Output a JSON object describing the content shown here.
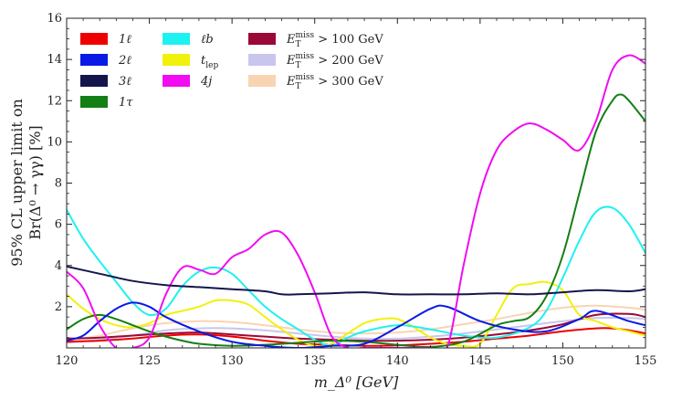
{
  "chart_data": {
    "type": "line",
    "title": "",
    "xlabel": "m_Δ⁰ [GeV]",
    "ylabel_line1": "95% CL upper limit on",
    "ylabel_line2": "Br(Δ⁰ → γγ) [%]",
    "xlim": [
      120,
      155
    ],
    "ylim": [
      0,
      16
    ],
    "xticks": [
      120,
      125,
      130,
      135,
      140,
      145,
      150,
      155
    ],
    "yticks": [
      2,
      4,
      6,
      8,
      10,
      12,
      14,
      16
    ],
    "legend_position": "top-left",
    "series": [
      {
        "name": "1ℓ",
        "color": "#ee0000",
        "x": [
          120,
          122,
          124,
          126,
          128,
          130,
          132,
          134,
          136,
          138,
          140,
          142,
          144,
          146,
          148,
          150,
          152,
          153,
          154,
          155
        ],
        "y": [
          0.3,
          0.35,
          0.45,
          0.6,
          0.65,
          0.55,
          0.35,
          0.2,
          0.15,
          0.1,
          0.12,
          0.2,
          0.3,
          0.45,
          0.6,
          0.8,
          0.95,
          0.95,
          0.85,
          0.7
        ]
      },
      {
        "name": "2ℓ",
        "color": "#0a1ae6",
        "x": [
          120,
          121,
          122,
          123,
          124,
          125,
          126,
          128,
          130,
          132,
          134,
          136,
          138,
          140,
          142,
          143,
          145,
          147,
          149,
          151,
          152,
          154,
          155
        ],
        "y": [
          0.35,
          0.6,
          1.3,
          1.9,
          2.2,
          2.0,
          1.5,
          0.8,
          0.3,
          0.1,
          0.0,
          0.1,
          0.2,
          1.0,
          1.9,
          2.0,
          1.3,
          0.9,
          0.8,
          1.4,
          1.8,
          1.3,
          1.1
        ]
      },
      {
        "name": "3ℓ",
        "color": "#15154d",
        "x": [
          120,
          122,
          124,
          126,
          128,
          130,
          132,
          133,
          134,
          136,
          138,
          140,
          142,
          144,
          146,
          148,
          150,
          152,
          154,
          155
        ],
        "y": [
          3.95,
          3.6,
          3.25,
          3.05,
          2.95,
          2.85,
          2.75,
          2.6,
          2.6,
          2.65,
          2.7,
          2.6,
          2.6,
          2.6,
          2.65,
          2.6,
          2.7,
          2.8,
          2.75,
          2.85
        ]
      },
      {
        "name": "1τ",
        "color": "#137f14",
        "x": [
          120,
          121,
          122,
          123,
          124,
          125,
          126,
          127,
          128,
          130,
          132,
          134,
          136,
          138,
          140,
          142,
          144,
          146,
          147,
          148,
          149,
          150,
          151,
          152,
          153,
          153.5,
          154,
          155
        ],
        "y": [
          0.9,
          1.4,
          1.6,
          1.4,
          1.1,
          0.8,
          0.55,
          0.35,
          0.2,
          0.1,
          0.15,
          0.25,
          0.35,
          0.3,
          0.15,
          0.05,
          0.3,
          1.1,
          1.3,
          1.5,
          2.5,
          4.5,
          7.5,
          10.5,
          12.0,
          12.3,
          12.0,
          11.0
        ]
      },
      {
        "name": "ℓb",
        "color": "#1ef1f1",
        "x": [
          120,
          121,
          122,
          123,
          124,
          125,
          126,
          127,
          128,
          129,
          130,
          131,
          132,
          133,
          134,
          135,
          136,
          137,
          138,
          140,
          142,
          144,
          146,
          148,
          149,
          150,
          151,
          152,
          153,
          154,
          155
        ],
        "y": [
          6.7,
          5.3,
          4.2,
          3.2,
          2.2,
          1.6,
          1.9,
          3.0,
          3.7,
          3.9,
          3.6,
          2.8,
          2.0,
          1.4,
          0.9,
          0.4,
          0.1,
          0.5,
          0.8,
          1.1,
          0.9,
          0.6,
          0.5,
          1.0,
          1.8,
          3.4,
          5.2,
          6.6,
          6.8,
          6.0,
          4.6
        ]
      },
      {
        "name": "t_lep",
        "color": "#f1f10c",
        "x": [
          120,
          121,
          122,
          123,
          124,
          125,
          126,
          127,
          128,
          129,
          130,
          131,
          132,
          133,
          134,
          135,
          136,
          137,
          138,
          139,
          140,
          141,
          142,
          143,
          144,
          145,
          146,
          147,
          148,
          149,
          150,
          151,
          152,
          153,
          154,
          155
        ],
        "y": [
          2.6,
          1.9,
          1.4,
          1.1,
          1.0,
          1.2,
          1.6,
          1.8,
          2.0,
          2.3,
          2.3,
          2.1,
          1.5,
          0.9,
          0.4,
          0.1,
          0.2,
          0.7,
          1.2,
          1.4,
          1.4,
          1.0,
          0.5,
          0.2,
          0.1,
          0.2,
          1.6,
          2.9,
          3.1,
          3.2,
          2.8,
          1.6,
          1.3,
          1.0,
          0.8,
          0.6
        ]
      },
      {
        "name": "4j",
        "color": "#f10cf1",
        "x": [
          120,
          121,
          122,
          123,
          124,
          125,
          126,
          127,
          128,
          129,
          130,
          131,
          132,
          133,
          134,
          135,
          136,
          137,
          138,
          139,
          140,
          141,
          142,
          143,
          144,
          145,
          146,
          147,
          148,
          149,
          150,
          151,
          152,
          153,
          154,
          155
        ],
        "y": [
          3.7,
          2.9,
          1.1,
          0.0,
          0.0,
          0.5,
          2.6,
          3.9,
          3.8,
          3.6,
          4.4,
          4.8,
          5.5,
          5.6,
          4.5,
          2.7,
          0.6,
          0.0,
          0.0,
          0.0,
          0.0,
          0.0,
          0.0,
          0.0,
          4.0,
          7.5,
          9.6,
          10.5,
          10.9,
          10.6,
          10.1,
          9.6,
          11.0,
          13.5,
          14.2,
          13.8
        ]
      },
      {
        "name": "E_T^miss > 100 GeV",
        "color": "#9a0a36",
        "x": [
          120,
          122,
          124,
          126,
          128,
          130,
          132,
          134,
          136,
          138,
          140,
          142,
          144,
          146,
          148,
          150,
          152,
          154,
          155
        ],
        "y": [
          0.45,
          0.5,
          0.6,
          0.7,
          0.75,
          0.65,
          0.55,
          0.45,
          0.4,
          0.35,
          0.35,
          0.4,
          0.5,
          0.65,
          0.85,
          1.15,
          1.6,
          1.65,
          1.5
        ]
      },
      {
        "name": "E_T^miss > 200 GeV",
        "color": "#c8c6ed",
        "x": [
          120,
          122,
          124,
          126,
          128,
          130,
          132,
          134,
          136,
          138,
          140,
          142,
          144,
          146,
          148,
          150,
          152,
          154,
          155
        ],
        "y": [
          0.25,
          0.4,
          0.6,
          0.85,
          0.95,
          0.95,
          0.85,
          0.7,
          0.55,
          0.45,
          0.45,
          0.55,
          0.7,
          0.9,
          1.1,
          1.3,
          1.45,
          1.45,
          1.4
        ]
      },
      {
        "name": "E_T^miss > 300 GeV",
        "color": "#f9d4b3",
        "x": [
          120,
          122,
          124,
          126,
          128,
          130,
          132,
          134,
          136,
          138,
          140,
          142,
          144,
          146,
          148,
          150,
          152,
          154,
          155
        ],
        "y": [
          0.35,
          0.6,
          0.95,
          1.2,
          1.3,
          1.25,
          1.1,
          0.9,
          0.75,
          0.7,
          0.75,
          0.9,
          1.15,
          1.4,
          1.7,
          1.95,
          2.05,
          1.95,
          1.85
        ]
      }
    ],
    "legend": [
      {
        "label": "1ℓ",
        "color": "#ee0000"
      },
      {
        "label": "2ℓ",
        "color": "#0a1ae6"
      },
      {
        "label": "3ℓ",
        "color": "#15154d"
      },
      {
        "label": "1τ",
        "color": "#137f14"
      },
      {
        "label": "ℓb",
        "color": "#1ef1f1"
      },
      {
        "label": "t",
        "sub": "lep",
        "color": "#f1f10c"
      },
      {
        "label": "4j",
        "color": "#f10cf1"
      },
      {
        "label": "E",
        "sub": "T",
        "sup": "miss",
        "rest": " > 100 GeV",
        "color": "#9a0a36"
      },
      {
        "label": "E",
        "sub": "T",
        "sup": "miss",
        "rest": " > 200 GeV",
        "color": "#c8c6ed"
      },
      {
        "label": "E",
        "sub": "T",
        "sup": "miss",
        "rest": " > 300 GeV",
        "color": "#f9d4b3"
      }
    ]
  }
}
